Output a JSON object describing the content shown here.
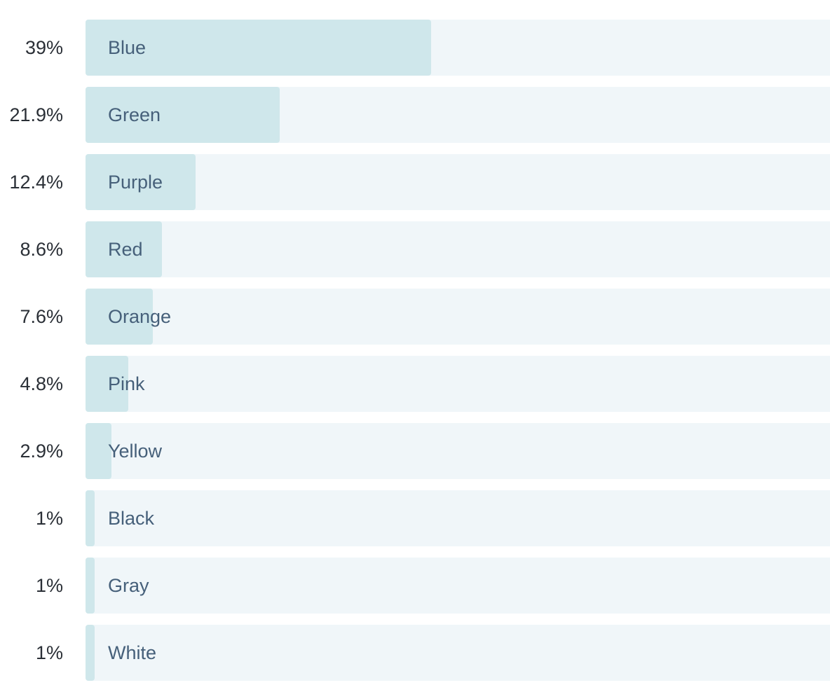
{
  "chart_data": {
    "type": "bar",
    "orientation": "horizontal",
    "categories": [
      "Blue",
      "Green",
      "Purple",
      "Red",
      "Orange",
      "Pink",
      "Yellow",
      "Black",
      "Gray",
      "White"
    ],
    "values": [
      39,
      21.9,
      12.4,
      8.6,
      7.6,
      4.8,
      2.9,
      1,
      1,
      1
    ],
    "value_labels": [
      "39%",
      "21.9%",
      "12.4%",
      "8.6%",
      "7.6%",
      "4.8%",
      "2.9%",
      "1%",
      "1%",
      "1%"
    ],
    "unit": "%",
    "xlim": [
      0,
      84
    ],
    "colors": {
      "fill": "#cfe7eb",
      "track": "#f0f6f9",
      "label": "#46607a",
      "value": "#2a2f36"
    }
  }
}
